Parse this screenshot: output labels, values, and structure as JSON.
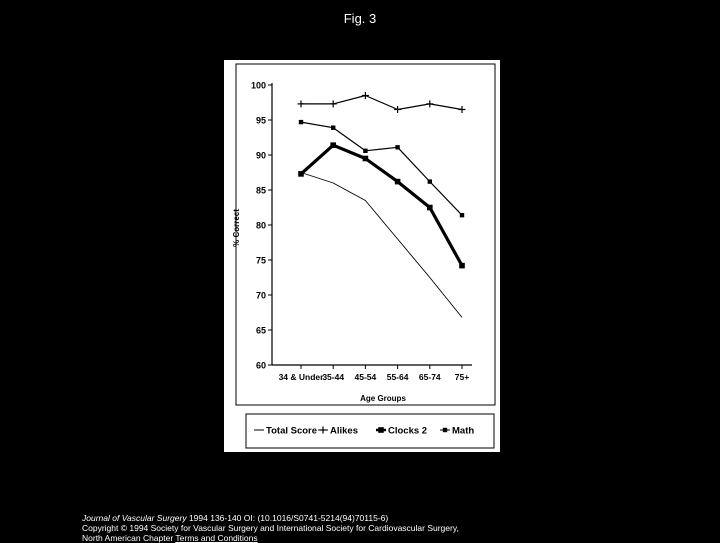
{
  "figure": {
    "title": "Fig. 3"
  },
  "chart_data": {
    "type": "line",
    "title": "",
    "xlabel": "Age Groups",
    "ylabel": "% Correct",
    "categories": [
      "34 & Under",
      "35-44",
      "45-54",
      "55-64",
      "65-74",
      "75+"
    ],
    "ylim": [
      60,
      100
    ],
    "yticks": [
      60,
      65,
      70,
      75,
      80,
      85,
      90,
      95,
      100
    ],
    "grid": false,
    "legend_position": "bottom",
    "series": [
      {
        "name": "Total Score",
        "values": [
          87.5,
          86.0,
          83.5,
          78.0,
          72.5,
          66.8
        ],
        "color": "#000000",
        "marker": "none"
      },
      {
        "name": "Alikes",
        "values": [
          97.3,
          97.3,
          98.5,
          96.5,
          97.3,
          96.5
        ],
        "color": "#000000",
        "marker": "plus"
      },
      {
        "name": "Clocks 2",
        "values": [
          87.3,
          91.4,
          89.5,
          86.2,
          82.5,
          74.2
        ],
        "color": "#000000",
        "marker": "square"
      },
      {
        "name": "Math",
        "values": [
          94.7,
          93.9,
          90.6,
          91.1,
          86.2,
          81.4
        ],
        "color": "#000000",
        "marker": "small-square"
      }
    ]
  },
  "footer": {
    "journal": "Journal of Vascular Surgery",
    "citation": " 1994 136-140 OI: (10.1016/S0741-5214(94)70115-6)",
    "copyright": "Copyright © 1994 Society for Vascular Surgery and International Society for Cardiovascular Surgery,",
    "chapter": "North American Chapter",
    "link_label": "Terms and Conditions"
  }
}
